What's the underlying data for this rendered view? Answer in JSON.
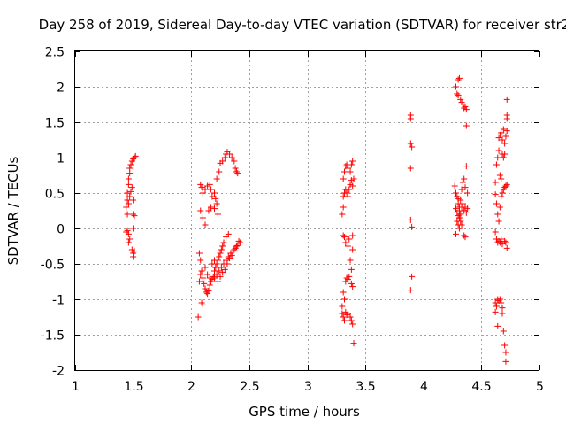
{
  "chart_data": {
    "type": "scatter",
    "title": "Day 258 of 2019, Sidereal Day-to-day VTEC variation (SDTVAR) for receiver str2",
    "xlabel": "GPS time / hours",
    "ylabel": "SDTVAR / TECUs",
    "xlim": [
      1,
      5
    ],
    "ylim": [
      -2,
      2.5
    ],
    "xticks": [
      1,
      1.5,
      2,
      2.5,
      3,
      3.5,
      4,
      4.5,
      5
    ],
    "xtick_labels": [
      "1",
      "1.5",
      "2",
      "2.5",
      "3",
      "3.5",
      "4",
      "4.5",
      "5"
    ],
    "yticks": [
      -2,
      -1.5,
      -1,
      -0.5,
      0,
      0.5,
      1,
      1.5,
      2,
      2.5
    ],
    "ytick_labels": [
      "-2",
      "-1.5",
      "-1",
      "-0.5",
      "0",
      "0.5",
      "1",
      "1.5",
      "2",
      "2.5"
    ],
    "grid": true,
    "marker": "+",
    "color": "#ff0000",
    "series": [
      {
        "name": "str2",
        "points": [
          [
            1.44,
            0.3
          ],
          [
            1.45,
            0.4
          ],
          [
            1.45,
            0.5
          ],
          [
            1.46,
            0.62
          ],
          [
            1.46,
            0.7
          ],
          [
            1.47,
            0.78
          ],
          [
            1.47,
            0.85
          ],
          [
            1.48,
            0.9
          ],
          [
            1.49,
            0.95
          ],
          [
            1.5,
            0.98
          ],
          [
            1.51,
            1.0
          ],
          [
            1.52,
            1.02
          ],
          [
            1.45,
            0.2
          ],
          [
            1.46,
            0.35
          ],
          [
            1.47,
            0.45
          ],
          [
            1.48,
            0.52
          ],
          [
            1.49,
            0.58
          ],
          [
            1.5,
            0.4
          ],
          [
            1.5,
            0.2
          ],
          [
            1.51,
            0.18
          ],
          [
            1.5,
            0.0
          ],
          [
            1.44,
            -0.05
          ],
          [
            1.45,
            -0.03
          ],
          [
            1.46,
            -0.08
          ],
          [
            1.46,
            -0.2
          ],
          [
            1.47,
            -0.15
          ],
          [
            1.49,
            -0.3
          ],
          [
            1.5,
            -0.35
          ],
          [
            1.5,
            -0.4
          ],
          [
            1.51,
            -0.32
          ],
          [
            2.08,
            0.62
          ],
          [
            2.09,
            0.58
          ],
          [
            2.1,
            0.5
          ],
          [
            2.12,
            0.55
          ],
          [
            2.14,
            0.6
          ],
          [
            2.16,
            0.62
          ],
          [
            2.17,
            0.55
          ],
          [
            2.18,
            0.45
          ],
          [
            2.2,
            0.5
          ],
          [
            2.21,
            0.42
          ],
          [
            2.08,
            0.25
          ],
          [
            2.1,
            0.15
          ],
          [
            2.12,
            0.05
          ],
          [
            2.15,
            0.25
          ],
          [
            2.17,
            0.3
          ],
          [
            2.2,
            0.28
          ],
          [
            2.22,
            0.35
          ],
          [
            2.23,
            0.2
          ],
          [
            2.22,
            0.7
          ],
          [
            2.24,
            0.8
          ],
          [
            2.25,
            0.92
          ],
          [
            2.27,
            0.95
          ],
          [
            2.29,
            1.0
          ],
          [
            2.3,
            1.05
          ],
          [
            2.31,
            1.08
          ],
          [
            2.33,
            1.05
          ],
          [
            2.35,
            1.0
          ],
          [
            2.37,
            0.95
          ],
          [
            2.38,
            0.85
          ],
          [
            2.39,
            0.8
          ],
          [
            2.4,
            0.78
          ],
          [
            2.07,
            -0.75
          ],
          [
            2.08,
            -0.65
          ],
          [
            2.09,
            -0.6
          ],
          [
            2.1,
            -0.7
          ],
          [
            2.11,
            -0.78
          ],
          [
            2.12,
            -0.85
          ],
          [
            2.13,
            -0.9
          ],
          [
            2.14,
            -0.92
          ],
          [
            2.15,
            -0.88
          ],
          [
            2.16,
            -0.8
          ],
          [
            2.17,
            -0.75
          ],
          [
            2.18,
            -0.72
          ],
          [
            2.19,
            -0.68
          ],
          [
            2.2,
            -0.6
          ],
          [
            2.21,
            -0.55
          ],
          [
            2.22,
            -0.5
          ],
          [
            2.23,
            -0.45
          ],
          [
            2.24,
            -0.4
          ],
          [
            2.25,
            -0.35
          ],
          [
            2.26,
            -0.3
          ],
          [
            2.27,
            -0.25
          ],
          [
            2.28,
            -0.2
          ],
          [
            2.3,
            -0.12
          ],
          [
            2.32,
            -0.08
          ],
          [
            2.2,
            -0.7
          ],
          [
            2.22,
            -0.65
          ],
          [
            2.24,
            -0.6
          ],
          [
            2.26,
            -0.55
          ],
          [
            2.28,
            -0.5
          ],
          [
            2.3,
            -0.45
          ],
          [
            2.32,
            -0.4
          ],
          [
            2.34,
            -0.35
          ],
          [
            2.36,
            -0.32
          ],
          [
            2.38,
            -0.28
          ],
          [
            2.4,
            -0.24
          ],
          [
            2.42,
            -0.2
          ],
          [
            2.07,
            -0.35
          ],
          [
            2.08,
            -0.45
          ],
          [
            2.09,
            -1.05
          ],
          [
            2.1,
            -1.08
          ],
          [
            2.06,
            -1.25
          ],
          [
            2.12,
            -0.55
          ],
          [
            2.14,
            -0.65
          ],
          [
            2.16,
            -0.7
          ],
          [
            2.18,
            -0.5
          ],
          [
            2.2,
            -0.45
          ],
          [
            2.23,
            -0.75
          ],
          [
            2.25,
            -0.68
          ],
          [
            2.27,
            -0.62
          ],
          [
            2.29,
            -0.58
          ],
          [
            2.31,
            -0.5
          ],
          [
            2.33,
            -0.42
          ],
          [
            2.35,
            -0.38
          ],
          [
            2.37,
            -0.3
          ],
          [
            2.39,
            -0.25
          ],
          [
            2.41,
            -0.18
          ],
          [
            3.3,
            0.2
          ],
          [
            3.31,
            0.3
          ],
          [
            3.31,
            0.45
          ],
          [
            3.32,
            0.5
          ],
          [
            3.33,
            0.55
          ],
          [
            3.34,
            0.5
          ],
          [
            3.35,
            0.45
          ],
          [
            3.36,
            0.55
          ],
          [
            3.37,
            0.62
          ],
          [
            3.38,
            0.68
          ],
          [
            3.39,
            0.6
          ],
          [
            3.31,
            0.7
          ],
          [
            3.32,
            0.8
          ],
          [
            3.33,
            0.88
          ],
          [
            3.34,
            0.9
          ],
          [
            3.35,
            0.85
          ],
          [
            3.37,
            0.8
          ],
          [
            3.38,
            0.9
          ],
          [
            3.39,
            0.95
          ],
          [
            3.4,
            0.7
          ],
          [
            3.31,
            -0.1
          ],
          [
            3.32,
            -0.12
          ],
          [
            3.33,
            -0.2
          ],
          [
            3.35,
            -0.25
          ],
          [
            3.36,
            -0.15
          ],
          [
            3.37,
            -0.45
          ],
          [
            3.38,
            -0.58
          ],
          [
            3.39,
            -0.1
          ],
          [
            3.39,
            -0.3
          ],
          [
            3.31,
            -0.9
          ],
          [
            3.32,
            -1.0
          ],
          [
            3.33,
            -0.75
          ],
          [
            3.34,
            -0.7
          ],
          [
            3.35,
            -0.72
          ],
          [
            3.36,
            -0.68
          ],
          [
            3.38,
            -0.78
          ],
          [
            3.39,
            -0.82
          ],
          [
            3.3,
            -1.2
          ],
          [
            3.31,
            -1.25
          ],
          [
            3.32,
            -1.3
          ],
          [
            3.33,
            -1.18
          ],
          [
            3.34,
            -1.22
          ],
          [
            3.35,
            -1.2
          ],
          [
            3.37,
            -1.25
          ],
          [
            3.38,
            -1.3
          ],
          [
            3.39,
            -1.35
          ],
          [
            3.4,
            -1.62
          ],
          [
            3.3,
            -1.1
          ],
          [
            3.89,
            1.6
          ],
          [
            3.89,
            1.55
          ],
          [
            3.89,
            1.2
          ],
          [
            3.9,
            1.15
          ],
          [
            3.89,
            0.85
          ],
          [
            3.89,
            0.12
          ],
          [
            3.9,
            0.02
          ],
          [
            3.9,
            -0.68
          ],
          [
            3.89,
            -0.87
          ],
          [
            4.28,
            2.0
          ],
          [
            4.29,
            1.9
          ],
          [
            4.3,
            1.88
          ],
          [
            4.3,
            2.1
          ],
          [
            4.31,
            2.12
          ],
          [
            4.32,
            1.82
          ],
          [
            4.33,
            1.78
          ],
          [
            4.35,
            1.7
          ],
          [
            4.36,
            1.72
          ],
          [
            4.37,
            1.68
          ],
          [
            4.37,
            1.45
          ],
          [
            4.27,
            0.6
          ],
          [
            4.28,
            0.5
          ],
          [
            4.29,
            0.45
          ],
          [
            4.3,
            0.42
          ],
          [
            4.3,
            0.35
          ],
          [
            4.31,
            0.3
          ],
          [
            4.31,
            0.25
          ],
          [
            4.32,
            0.4
          ],
          [
            4.33,
            0.55
          ],
          [
            4.34,
            0.65
          ],
          [
            4.35,
            0.7
          ],
          [
            4.36,
            0.58
          ],
          [
            4.28,
            0.28
          ],
          [
            4.29,
            0.22
          ],
          [
            4.3,
            0.18
          ],
          [
            4.31,
            0.15
          ],
          [
            4.32,
            0.2
          ],
          [
            4.33,
            0.3
          ],
          [
            4.34,
            0.35
          ],
          [
            4.35,
            0.25
          ],
          [
            4.36,
            0.3
          ],
          [
            4.37,
            0.22
          ],
          [
            4.38,
            0.28
          ],
          [
            4.29,
            0.1
          ],
          [
            4.3,
            0.05
          ],
          [
            4.31,
            0.0
          ],
          [
            4.32,
            0.1
          ],
          [
            4.33,
            0.05
          ],
          [
            4.35,
            -0.1
          ],
          [
            4.36,
            -0.12
          ],
          [
            4.28,
            -0.08
          ],
          [
            4.37,
            0.88
          ],
          [
            4.38,
            0.5
          ],
          [
            4.62,
            0.65
          ],
          [
            4.63,
            0.9
          ],
          [
            4.64,
            1.0
          ],
          [
            4.65,
            1.1
          ],
          [
            4.65,
            1.28
          ],
          [
            4.66,
            1.32
          ],
          [
            4.67,
            1.35
          ],
          [
            4.68,
            1.25
          ],
          [
            4.69,
            1.4
          ],
          [
            4.7,
            1.2
          ],
          [
            4.71,
            1.3
          ],
          [
            4.72,
            1.38
          ],
          [
            4.66,
            0.75
          ],
          [
            4.67,
            0.7
          ],
          [
            4.68,
            1.05
          ],
          [
            4.69,
            1.0
          ],
          [
            4.7,
            1.05
          ],
          [
            4.72,
            1.55
          ],
          [
            4.72,
            1.6
          ],
          [
            4.72,
            1.82
          ],
          [
            4.62,
            0.48
          ],
          [
            4.63,
            0.35
          ],
          [
            4.64,
            0.2
          ],
          [
            4.65,
            0.1
          ],
          [
            4.66,
            0.3
          ],
          [
            4.67,
            0.45
          ],
          [
            4.68,
            0.5
          ],
          [
            4.69,
            0.55
          ],
          [
            4.7,
            0.58
          ],
          [
            4.71,
            0.6
          ],
          [
            4.72,
            0.62
          ],
          [
            4.62,
            -0.05
          ],
          [
            4.63,
            -0.15
          ],
          [
            4.64,
            -0.2
          ],
          [
            4.65,
            -0.18
          ],
          [
            4.66,
            -0.2
          ],
          [
            4.67,
            -0.15
          ],
          [
            4.68,
            -0.22
          ],
          [
            4.7,
            -0.18
          ],
          [
            4.71,
            -0.2
          ],
          [
            4.72,
            -0.28
          ],
          [
            4.62,
            -1.05
          ],
          [
            4.63,
            -1.1
          ],
          [
            4.64,
            -1.0
          ],
          [
            4.65,
            -1.02
          ],
          [
            4.66,
            -1.0
          ],
          [
            4.67,
            -1.05
          ],
          [
            4.68,
            -1.12
          ],
          [
            4.62,
            -1.18
          ],
          [
            4.68,
            -1.2
          ],
          [
            4.64,
            -1.38
          ],
          [
            4.69,
            -1.45
          ],
          [
            4.7,
            -1.65
          ],
          [
            4.71,
            -1.75
          ],
          [
            4.71,
            -1.88
          ]
        ]
      }
    ]
  }
}
